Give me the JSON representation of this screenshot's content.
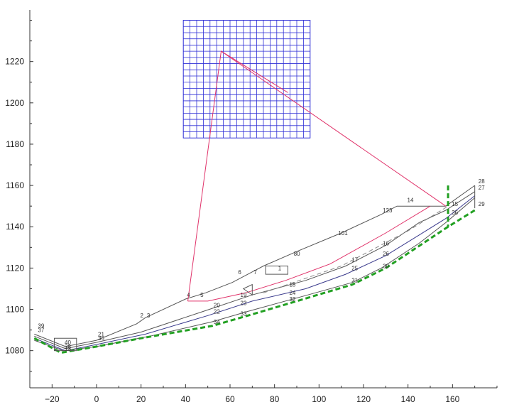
{
  "chart_data": {
    "type": "line",
    "title": "",
    "xlabel": "",
    "ylabel": "",
    "xlim": [
      -30,
      180
    ],
    "ylim": [
      1062,
      1245
    ],
    "xticks": [
      -20,
      0,
      20,
      40,
      60,
      80,
      100,
      120,
      140,
      160
    ],
    "yticks": [
      1080,
      1100,
      1120,
      1140,
      1160,
      1180,
      1200,
      1220
    ],
    "grid": false,
    "legend": "none",
    "colors": {
      "ground": "#555555",
      "layer": "#3a3a8c",
      "slip_search": "#e0336a",
      "critical_slip": "#22a022",
      "search_grid": "#2e2ed6",
      "dashed_layer": "#888888"
    },
    "series": [
      {
        "color": "#555555",
        "points": [
          [
            -28,
            1088
          ],
          [
            -14,
            1082
          ],
          [
            0,
            1085
          ],
          [
            18,
            1093
          ],
          [
            22,
            1096
          ],
          [
            40,
            1105
          ],
          [
            49,
            1108
          ],
          [
            61,
            1113
          ],
          [
            75,
            1121
          ],
          [
            90,
            1128
          ],
          [
            110,
            1137
          ],
          [
            128,
            1146
          ],
          [
            135,
            1150
          ],
          [
            157,
            1150
          ],
          [
            170,
            1160
          ]
        ]
      },
      {
        "color": "#555555",
        "points": [
          [
            -28,
            1087
          ],
          [
            -14,
            1081
          ],
          [
            0,
            1084
          ],
          [
            20,
            1089
          ],
          [
            48,
            1099
          ],
          [
            70,
            1107
          ],
          [
            94,
            1114
          ],
          [
            112,
            1121
          ],
          [
            130,
            1131
          ],
          [
            145,
            1142
          ],
          [
            157,
            1148
          ],
          [
            170,
            1157
          ]
        ]
      },
      {
        "color": "#3a3a8c",
        "points": [
          [
            -28,
            1086
          ],
          [
            -14,
            1080
          ],
          [
            0,
            1083
          ],
          [
            22,
            1088
          ],
          [
            50,
            1097
          ],
          [
            70,
            1104
          ],
          [
            94,
            1110
          ],
          [
            112,
            1117
          ],
          [
            130,
            1126
          ],
          [
            145,
            1136
          ],
          [
            157,
            1144
          ],
          [
            170,
            1155
          ]
        ]
      },
      {
        "color": "#555555",
        "points": [
          [
            -28,
            1085
          ],
          [
            -15,
            1080
          ],
          [
            0,
            1082
          ],
          [
            24,
            1087
          ],
          [
            52,
            1094
          ],
          [
            68,
            1099
          ],
          [
            95,
            1107
          ],
          [
            115,
            1113
          ],
          [
            128,
            1120
          ],
          [
            145,
            1132
          ],
          [
            157,
            1142
          ],
          [
            170,
            1154
          ]
        ]
      },
      {
        "color": "#888888",
        "dashed": true,
        "points": [
          [
            75,
            1108
          ],
          [
            110,
            1121
          ],
          [
            140,
            1138
          ],
          [
            158,
            1150
          ]
        ]
      },
      {
        "color": "#555555",
        "points": [
          [
            170,
            1160
          ],
          [
            170,
            1149
          ]
        ]
      }
    ],
    "critical_slip": [
      [
        -28,
        1086
      ],
      [
        -16,
        1079
      ],
      [
        0,
        1082
      ],
      [
        20,
        1086
      ],
      [
        52,
        1092
      ],
      [
        68,
        1097
      ],
      [
        90,
        1104
      ],
      [
        115,
        1112
      ],
      [
        130,
        1120
      ],
      [
        158,
        1140
      ],
      [
        170,
        1148
      ]
    ],
    "critical_vertical": [
      [
        158,
        1160
      ],
      [
        158,
        1140
      ]
    ],
    "slip_lines": [
      {
        "points": [
          [
            41,
            1104
          ],
          [
            56,
            1225
          ],
          [
            157,
            1150
          ]
        ]
      },
      {
        "points": [
          [
            41,
            1104
          ],
          [
            50,
            1104
          ],
          [
            67,
            1108
          ],
          [
            85,
            1114
          ],
          [
            105,
            1122
          ],
          [
            130,
            1137
          ],
          [
            150,
            1150
          ]
        ]
      },
      {
        "points": [
          [
            56,
            1225
          ],
          [
            86,
            1205
          ]
        ]
      }
    ],
    "grid_box": {
      "x0": 39,
      "x1": 96,
      "y0": 1183,
      "y1": 1240,
      "nx": 19,
      "ny": 19
    },
    "labels": [
      {
        "text": "28",
        "x": 171,
        "y": 1161
      },
      {
        "text": "27",
        "x": 171,
        "y": 1158
      },
      {
        "text": "29",
        "x": 171,
        "y": 1150
      },
      {
        "text": "15",
        "x": 159,
        "y": 1150
      },
      {
        "text": "36",
        "x": 159,
        "y": 1146
      },
      {
        "text": "14",
        "x": 139,
        "y": 1152
      },
      {
        "text": "123",
        "x": 128,
        "y": 1147
      },
      {
        "text": "101",
        "x": 108,
        "y": 1136
      },
      {
        "text": "16",
        "x": 128,
        "y": 1131
      },
      {
        "text": "26",
        "x": 128,
        "y": 1126
      },
      {
        "text": "30",
        "x": 128,
        "y": 1120
      },
      {
        "text": "80",
        "x": 88,
        "y": 1126
      },
      {
        "text": "17",
        "x": 114,
        "y": 1123
      },
      {
        "text": "25",
        "x": 114,
        "y": 1119
      },
      {
        "text": "31",
        "x": 114,
        "y": 1113
      },
      {
        "text": "6",
        "x": 63,
        "y": 1117
      },
      {
        "text": "7",
        "x": 70,
        "y": 1117
      },
      {
        "text": "1",
        "x": 81,
        "y": 1119
      },
      {
        "text": "18",
        "x": 86,
        "y": 1111
      },
      {
        "text": "24",
        "x": 86,
        "y": 1107
      },
      {
        "text": "32",
        "x": 86,
        "y": 1104
      },
      {
        "text": "4",
        "x": 40,
        "y": 1106
      },
      {
        "text": "5",
        "x": 46,
        "y": 1106
      },
      {
        "text": "19",
        "x": 64,
        "y": 1106
      },
      {
        "text": "23",
        "x": 64,
        "y": 1102
      },
      {
        "text": "20",
        "x": 52,
        "y": 1101
      },
      {
        "text": "22",
        "x": 52,
        "y": 1098
      },
      {
        "text": "33",
        "x": 64,
        "y": 1097
      },
      {
        "text": "34",
        "x": 52,
        "y": 1093
      },
      {
        "text": "2",
        "x": 19,
        "y": 1096
      },
      {
        "text": "3",
        "x": 22,
        "y": 1096
      },
      {
        "text": "21",
        "x": 0,
        "y": 1087
      },
      {
        "text": "35",
        "x": 0,
        "y": 1085
      },
      {
        "text": "39",
        "x": -27,
        "y": 1091
      },
      {
        "text": "37",
        "x": -27,
        "y": 1089
      },
      {
        "text": "40",
        "x": -15,
        "y": 1083
      },
      {
        "text": "38",
        "x": -15,
        "y": 1081
      },
      {
        "text": "13",
        "x": -15,
        "y": 1080
      }
    ]
  }
}
